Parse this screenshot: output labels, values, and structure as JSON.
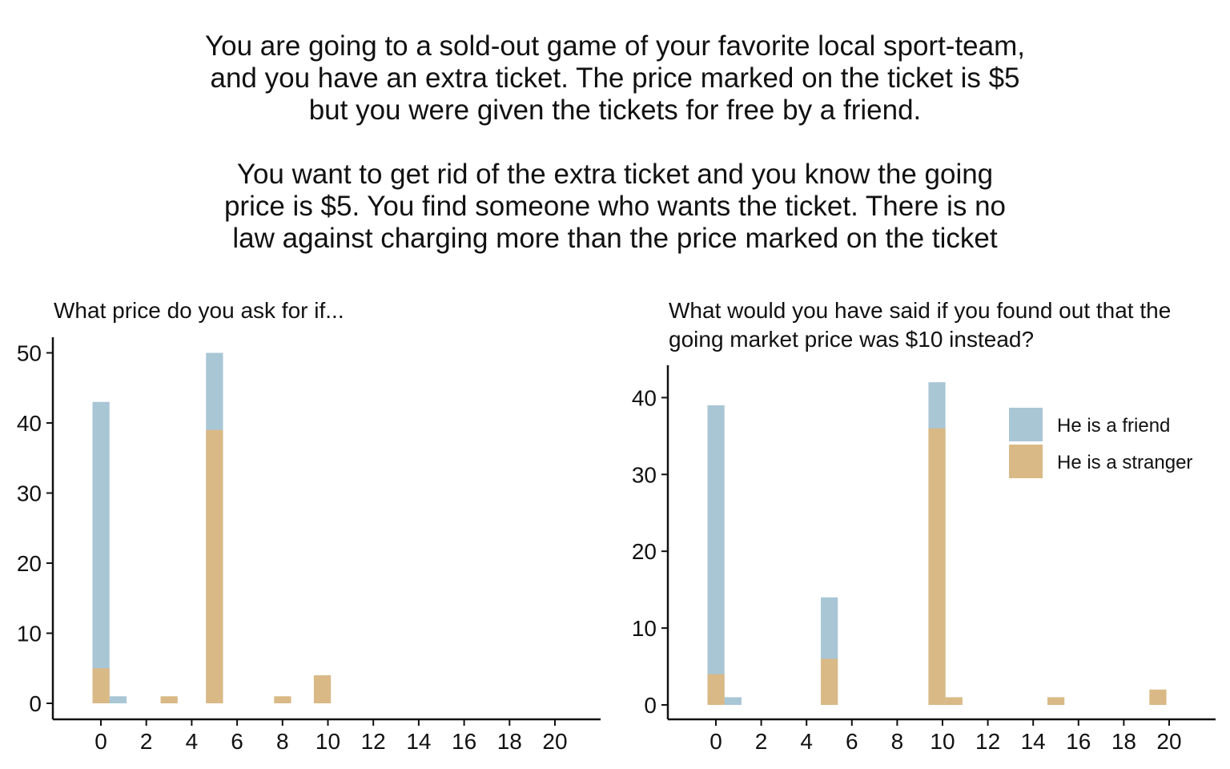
{
  "intro": {
    "paragraph1": [
      "You are going to a sold-out game of your favorite local sport-team,",
      "and you have an extra ticket. The price marked on the ticket is $5",
      "but you were given the tickets for free by a friend."
    ],
    "paragraph2": [
      "You want to get rid of the extra ticket and you know the going",
      "price is $5. You find someone who wants the ticket. There is no",
      "law against charging more than the price marked on the ticket"
    ]
  },
  "colors": {
    "friend": "#a9c6d5",
    "stranger": "#d9b986",
    "axis": "#111111"
  },
  "chart_data": [
    {
      "type": "bar",
      "title": "What price do you ask for if...",
      "xlabel": "",
      "ylabel": "",
      "xlim": [
        -2,
        22
      ],
      "ylim": [
        0,
        52
      ],
      "xticks": [
        0,
        2,
        4,
        6,
        8,
        10,
        12,
        14,
        16,
        18,
        20
      ],
      "yticks": [
        0,
        10,
        20,
        30,
        40,
        50
      ],
      "bin_width": 0.75,
      "series": [
        {
          "name": "He is a friend",
          "color_key": "friend",
          "points": [
            {
              "x": 0,
              "y": 43
            },
            {
              "x": 0.75,
              "y": 1
            },
            {
              "x": 5,
              "y": 50
            }
          ]
        },
        {
          "name": "He is a stranger",
          "color_key": "stranger",
          "points": [
            {
              "x": 0,
              "y": 5
            },
            {
              "x": 3,
              "y": 1
            },
            {
              "x": 5,
              "y": 39
            },
            {
              "x": 8,
              "y": 1
            },
            {
              "x": 9.75,
              "y": 4
            }
          ]
        }
      ]
    },
    {
      "type": "bar",
      "title": "What would you have said if you found out that the going market price was $10 instead?",
      "xlabel": "",
      "ylabel": "",
      "xlim": [
        -2,
        22
      ],
      "ylim": [
        0,
        44
      ],
      "xticks": [
        0,
        2,
        4,
        6,
        8,
        10,
        12,
        14,
        16,
        18,
        20
      ],
      "yticks": [
        0,
        10,
        20,
        30,
        40
      ],
      "bin_width": 0.75,
      "legend": {
        "position": "top-right",
        "entries": [
          "He is a friend",
          "He is a stranger"
        ]
      },
      "series": [
        {
          "name": "He is a friend",
          "color_key": "friend",
          "points": [
            {
              "x": 0,
              "y": 39
            },
            {
              "x": 0.75,
              "y": 1
            },
            {
              "x": 5,
              "y": 14
            },
            {
              "x": 9.75,
              "y": 42
            }
          ]
        },
        {
          "name": "He is a stranger",
          "color_key": "stranger",
          "points": [
            {
              "x": 0,
              "y": 4
            },
            {
              "x": 5,
              "y": 6
            },
            {
              "x": 9.75,
              "y": 36
            },
            {
              "x": 10.5,
              "y": 1
            },
            {
              "x": 15,
              "y": 1
            },
            {
              "x": 19.5,
              "y": 2
            }
          ]
        }
      ]
    }
  ]
}
